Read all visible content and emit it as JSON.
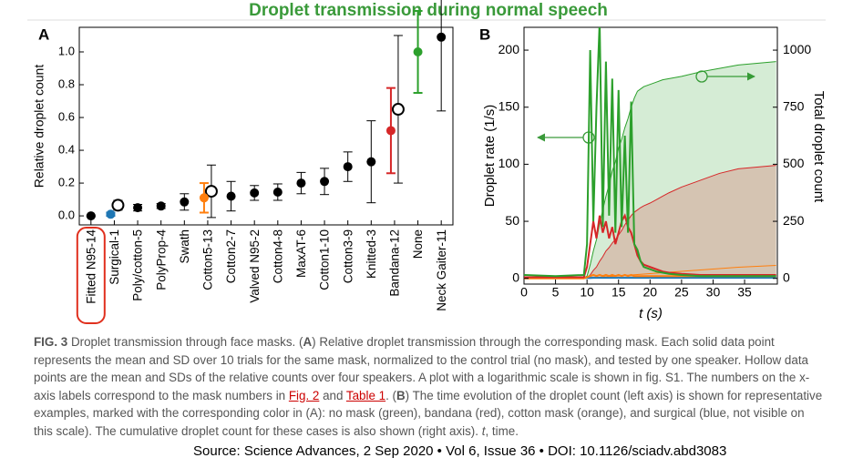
{
  "title": "Droplet transmission during normal speech",
  "chart_data": [
    {
      "type": "errorbar",
      "panel": "A",
      "y_label": "Relative droplet count",
      "categories": [
        "Fitted N95-14",
        "Surgical-1",
        "Poly/cotton-5",
        "PolyProp-4",
        "Swath",
        "Cotton5-13",
        "Cotton2-7",
        "Valved N95-2",
        "Cotton4-8",
        "MaxAT-6",
        "Cotton1-10",
        "Cotton3-9",
        "Knitted-3",
        "Bandana-12",
        "None",
        "Neck Gaiter-11"
      ],
      "values": [
        0.0,
        0.01,
        0.05,
        0.06,
        0.085,
        0.11,
        0.12,
        0.14,
        0.145,
        0.2,
        0.21,
        0.3,
        0.33,
        0.52,
        1.0,
        1.09
      ],
      "errors": [
        0.005,
        0.01,
        0.02,
        0.015,
        0.05,
        0.09,
        0.09,
        0.045,
        0.05,
        0.065,
        0.08,
        0.09,
        0.25,
        0.26,
        0.25,
        0.45
      ],
      "colors": [
        "#000000",
        "#1f77b4",
        "#000000",
        "#000000",
        "#000000",
        "#ff7f0e",
        "#000000",
        "#000000",
        "#000000",
        "#000000",
        "#000000",
        "#000000",
        "#000000",
        "#d62728",
        "#2ca02c",
        "#000000"
      ],
      "hollow_values": [
        null,
        0.065,
        null,
        null,
        null,
        0.15,
        null,
        null,
        null,
        null,
        null,
        null,
        null,
        0.65,
        null,
        null
      ],
      "hollow_errors": [
        null,
        0.03,
        null,
        null,
        null,
        0.16,
        null,
        null,
        null,
        null,
        null,
        null,
        null,
        0.45,
        null,
        null
      ],
      "highlight_index": 0,
      "ylim": [
        -0.055,
        1.15
      ],
      "yticks": [
        {
          "value": 0,
          "label": "0.0"
        },
        0.2,
        0.4,
        0.6,
        0.8,
        {
          "value": 1,
          "label": "1.0"
        }
      ]
    },
    {
      "type": "line",
      "panel": "B",
      "x_label": "t (s)",
      "y_label": "Droplet rate (1/s)",
      "y2_label": "Total droplet count",
      "x": [
        0,
        5,
        9.5,
        10,
        10.5,
        11,
        11.5,
        12,
        12.5,
        13,
        13.5,
        14,
        14.5,
        15,
        15.5,
        16,
        16.5,
        17,
        17.5,
        18,
        18.5,
        19,
        20,
        21,
        22,
        23,
        25,
        28,
        31,
        34,
        40
      ],
      "series": [
        {
          "color": "#2ca02c",
          "axis": "y2",
          "fill": true,
          "values": [
            0,
            0,
            2,
            10,
            60,
            120,
            170,
            240,
            300,
            360,
            410,
            470,
            510,
            570,
            610,
            660,
            700,
            750,
            790,
            820,
            830,
            840,
            850,
            860,
            870,
            875,
            885,
            905,
            920,
            935,
            950
          ]
        },
        {
          "color": "#d62728",
          "axis": "y2",
          "fill": true,
          "values": [
            0,
            0,
            1,
            5,
            15,
            35,
            50,
            75,
            95,
            120,
            135,
            155,
            170,
            190,
            210,
            235,
            255,
            275,
            290,
            300,
            310,
            318,
            330,
            345,
            360,
            375,
            400,
            430,
            460,
            480,
            495
          ]
        },
        {
          "color": "#ff7f0e",
          "axis": "y2",
          "values": [
            0,
            0,
            0,
            1,
            2,
            3,
            4,
            5,
            6,
            7,
            8,
            9,
            10,
            11,
            12,
            13,
            14,
            15,
            16,
            17,
            18,
            19,
            21,
            23,
            25,
            27,
            31,
            37,
            43,
            49,
            57
          ]
        },
        {
          "color": "#1f77b4",
          "axis": "y2",
          "values": [
            0,
            0,
            0,
            0,
            0,
            1,
            1,
            1,
            1,
            1,
            2,
            2,
            2,
            2,
            2,
            2,
            3,
            3,
            3,
            3,
            3,
            3,
            3,
            4,
            4,
            4,
            5,
            5,
            6,
            7,
            8
          ]
        },
        {
          "color": "#1f77b4",
          "values": [
            0.5,
            0.5,
            0.5,
            0.5,
            0.5,
            0.5,
            0.5,
            0.5,
            0.5,
            0.5,
            0.5,
            0.5,
            0.5,
            0.5,
            0.5,
            0.5,
            0.5,
            0.5,
            0.5,
            0.5,
            0.5,
            0.5,
            0.5,
            0.5,
            0.5,
            0.5,
            0.5,
            0.5,
            0.5,
            0.5,
            0.5
          ]
        },
        {
          "color": "#ff7f0e",
          "values": [
            0,
            0,
            0,
            1,
            2,
            3,
            2,
            3,
            2,
            3,
            2,
            3,
            2,
            3,
            2,
            3,
            2,
            3,
            2,
            2,
            2,
            2,
            2,
            2,
            2,
            2,
            2,
            2,
            2,
            2,
            2
          ]
        },
        {
          "color": "#d62728",
          "values": [
            1,
            1,
            1,
            10,
            30,
            50,
            35,
            55,
            40,
            50,
            35,
            45,
            30,
            40,
            50,
            55,
            45,
            40,
            30,
            20,
            15,
            12,
            10,
            8,
            6,
            5,
            4,
            3,
            3,
            3,
            3
          ]
        },
        {
          "color": "#2ca02c",
          "values": [
            3,
            2,
            3,
            30,
            200,
            50,
            150,
            225,
            45,
            190,
            55,
            175,
            40,
            165,
            45,
            125,
            40,
            155,
            30,
            25,
            15,
            10,
            8,
            6,
            5,
            4,
            3,
            2,
            2,
            2,
            2
          ]
        }
      ],
      "xlim": [
        0,
        40.2
      ],
      "xticks": [
        0,
        5,
        10,
        15,
        20,
        25,
        30,
        35
      ],
      "ylim": [
        -5,
        220
      ],
      "yticks": [
        0,
        50,
        100,
        150,
        200
      ],
      "y2lim": [
        -25,
        1100
      ],
      "y2ticks": [
        0,
        250,
        500,
        750,
        1000
      ]
    }
  ],
  "caption": {
    "label": "FIG. 3",
    "parts": [
      " Droplet transmission through face masks. (",
      "A",
      ") Relative droplet transmission through the corresponding mask. Each solid data point represents the mean and SD over 10 trials for the same mask, normalized to the control trial (no mask), and tested by one speaker. Hollow data points are the mean and SDs of the relative counts over four speakers. A plot with a logarithmic scale is shown in fig. S1. The numbers on the x-axis labels correspond to the mask numbers in ",
      "Fig. 2",
      " and ",
      "Table 1",
      ". (",
      "B",
      ") The time evolution of the droplet count (left axis) is shown for representative examples, marked with the corresponding color in (A): no mask (green), bandana (red), cotton mask (orange), and surgical (blue, not visible on this scale). The cumulative droplet count for these cases is also shown (right axis). ",
      "t",
      ", time."
    ]
  },
  "source": "Source: Science Advances, 2 Sep 2020 • Vol 6, Issue 36 • DOI: 10.1126/sciadv.abd3083"
}
